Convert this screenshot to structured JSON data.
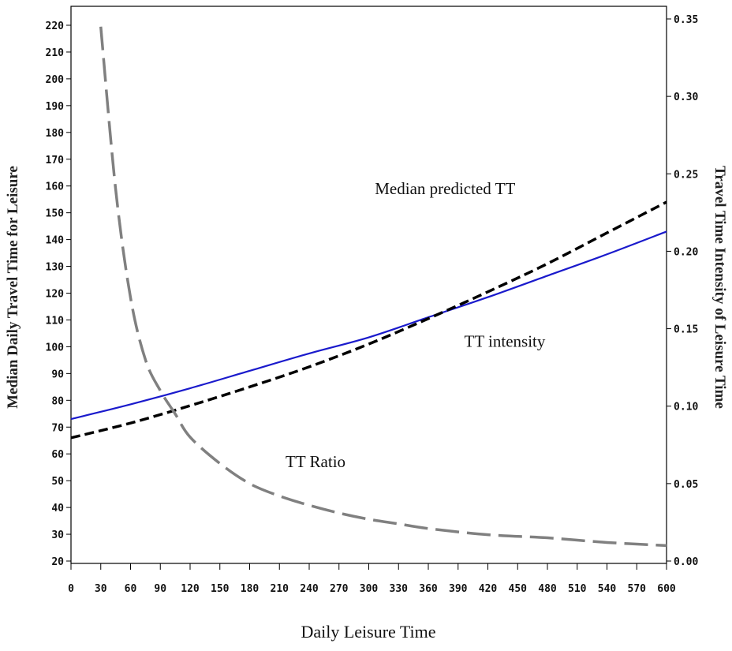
{
  "chart_data": {
    "type": "line",
    "xlabel": "Daily Leisure Time",
    "ylabel": "Median Daily Travel Time for Leisure",
    "y2label": "Travel Time Intensity of Leisure Time",
    "xlim": [
      0,
      600
    ],
    "ylim": [
      20,
      225
    ],
    "y2lim": [
      0.0,
      0.35
    ],
    "x_ticks": [
      0,
      30,
      60,
      90,
      120,
      150,
      180,
      210,
      240,
      270,
      300,
      330,
      360,
      390,
      420,
      450,
      480,
      510,
      540,
      570,
      600
    ],
    "y_ticks": [
      20,
      30,
      40,
      50,
      60,
      70,
      80,
      90,
      100,
      110,
      120,
      130,
      140,
      150,
      160,
      170,
      180,
      190,
      200,
      210,
      220
    ],
    "y2_ticks": [
      "0.00",
      "0.05",
      "0.10",
      "0.15",
      "0.20",
      "0.25",
      "0.30",
      "0.35"
    ],
    "grid": false,
    "legend": "none",
    "annotations": [
      {
        "text": "Median predicted TT",
        "x": 330,
        "y": 157
      },
      {
        "text": "TT intensity",
        "x": 420,
        "y": 100
      },
      {
        "text": "TT Ratio",
        "x": 240,
        "y": 55
      }
    ],
    "series": [
      {
        "color": "#1a1acc",
        "style": "solid",
        "axis": "left",
        "x": [
          0,
          60,
          120,
          180,
          240,
          300,
          360,
          420,
          480,
          540,
          600
        ],
        "values": [
          73,
          78.5,
          84.5,
          91,
          97.5,
          103.5,
          111,
          118.5,
          126.5,
          134.5,
          143
        ]
      },
      {
        "color": "#000000",
        "style": "dashed",
        "axis": "left",
        "x": [
          0,
          60,
          120,
          180,
          240,
          300,
          360,
          420,
          480,
          540,
          600
        ],
        "values": [
          66,
          71.5,
          78,
          85,
          92.5,
          101,
          110.5,
          120.5,
          131,
          142.5,
          154
        ]
      },
      {
        "color": "#808080",
        "style": "long-dashed",
        "axis": "right",
        "x": [
          30,
          45,
          60,
          75,
          90,
          105,
          120,
          150,
          180,
          210,
          240,
          270,
          300,
          330,
          360,
          420,
          480,
          540,
          600
        ],
        "values": [
          0.345,
          0.24,
          0.17,
          0.13,
          0.11,
          0.095,
          0.08,
          0.063,
          0.05,
          0.042,
          0.036,
          0.031,
          0.027,
          0.024,
          0.021,
          0.017,
          0.015,
          0.012,
          0.01
        ]
      }
    ]
  }
}
